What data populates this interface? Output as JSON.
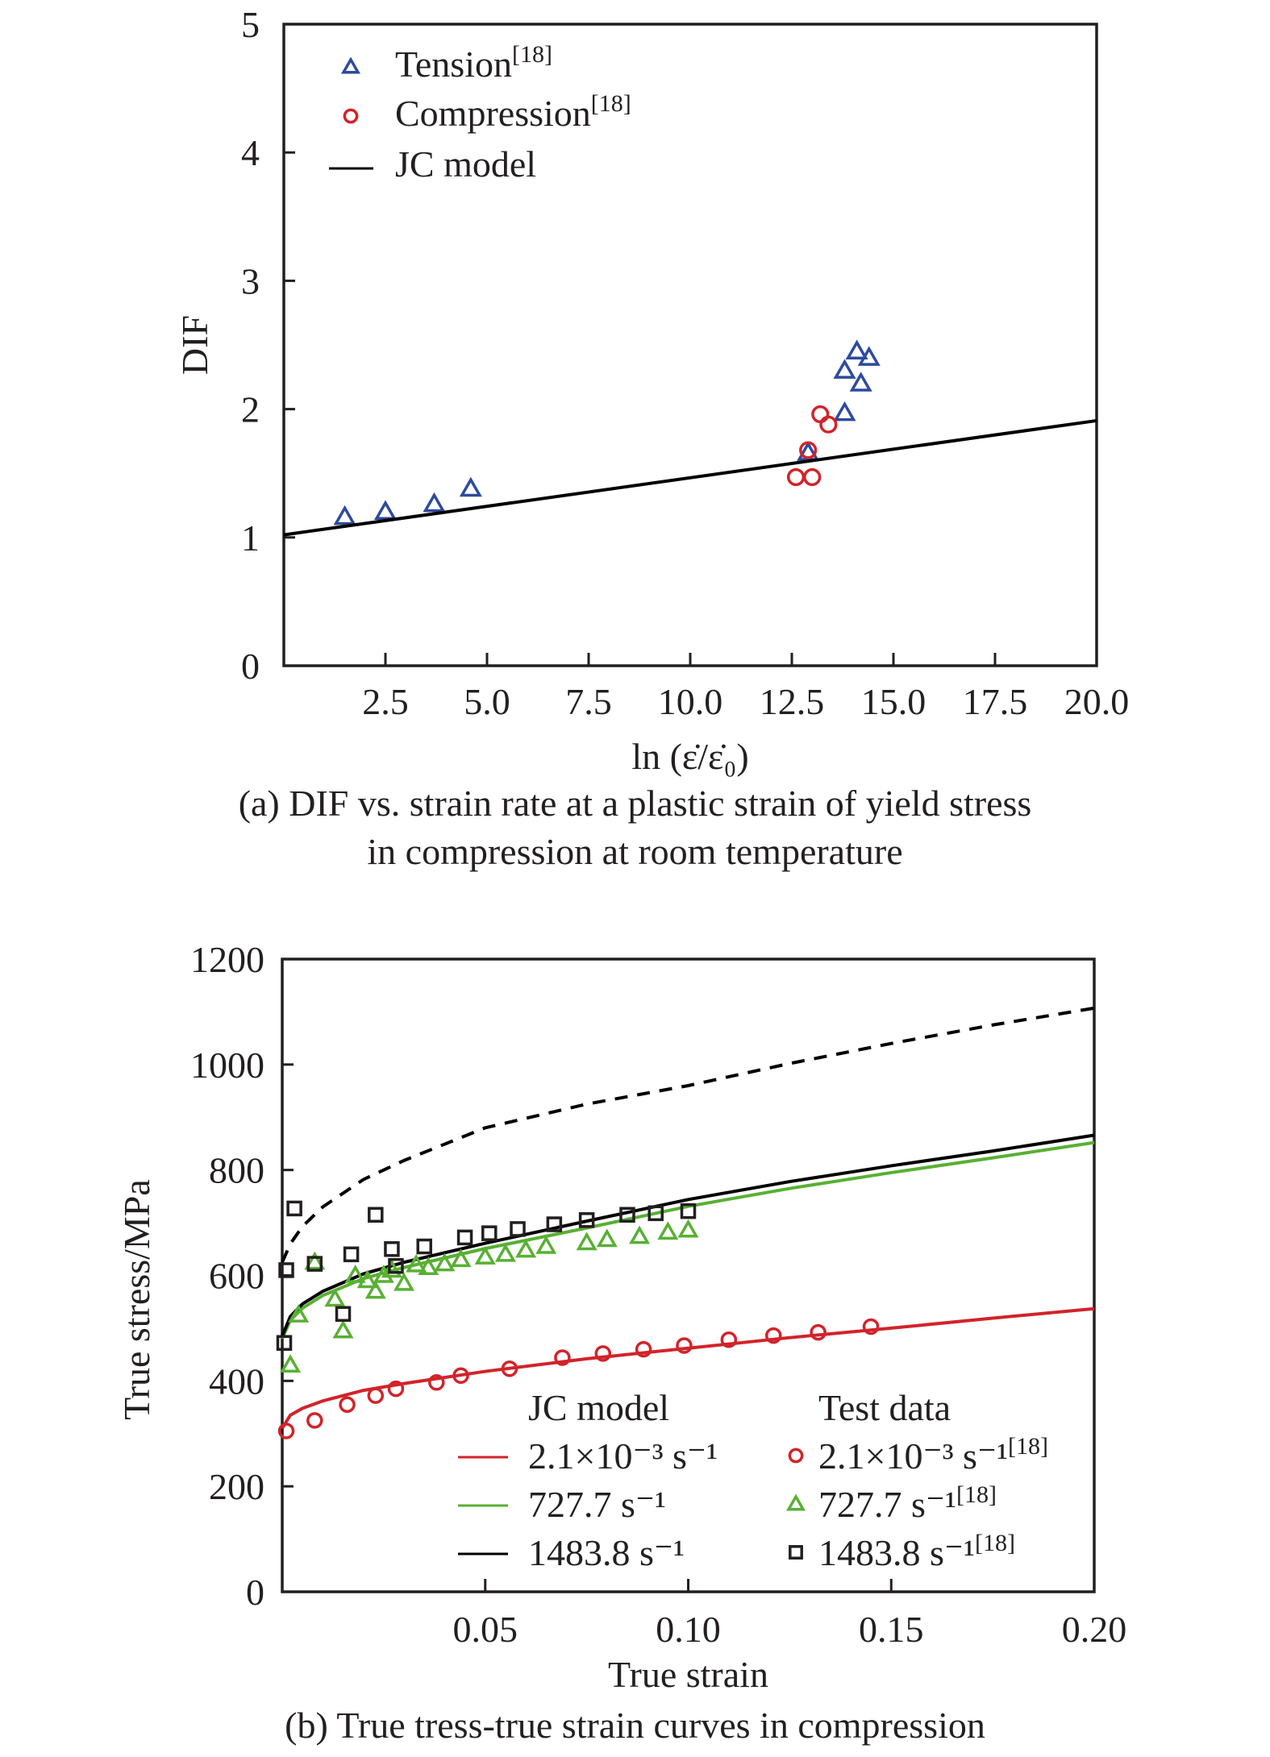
{
  "chart_data": [
    {
      "type": "scatter",
      "panel": "a",
      "caption_line1": "(a) DIF vs. strain rate at a plastic strain of yield stress",
      "caption_line2": "in compression at room temperature",
      "xlabel": "ln (ε̇/ε̇₀)",
      "ylabel": "DIF",
      "xlim": [
        0,
        20
      ],
      "ylim": [
        0,
        5
      ],
      "xticks": [
        2.5,
        5.0,
        7.5,
        10.0,
        12.5,
        15.0,
        17.5,
        20.0
      ],
      "xtick_labels": [
        "2.5",
        "5.0",
        "7.5",
        "10.0",
        "12.5",
        "15.0",
        "17.5",
        "20.0"
      ],
      "yticks": [
        0,
        1,
        2,
        3,
        4,
        5
      ],
      "ytick_labels": [
        "0",
        "1",
        "2",
        "3",
        "4",
        "5"
      ],
      "grid": false,
      "legend_position": "top-left",
      "series": [
        {
          "name": "Tension",
          "ref": "[18]",
          "marker": "triangle",
          "color": "#2e4a9e",
          "x": [
            1.5,
            2.5,
            3.7,
            4.6,
            12.9,
            13.8,
            13.8,
            14.1,
            14.2,
            14.4
          ],
          "y": [
            1.16,
            1.2,
            1.26,
            1.38,
            1.66,
            1.97,
            2.3,
            2.45,
            2.2,
            2.4
          ]
        },
        {
          "name": "Compression",
          "ref": "[18]",
          "marker": "circle",
          "color": "#d2232a",
          "x": [
            12.6,
            12.9,
            13.0,
            13.2,
            13.4
          ],
          "y": [
            1.47,
            1.68,
            1.47,
            1.96,
            1.88
          ]
        },
        {
          "name": "JC model",
          "ref": "",
          "marker": "line",
          "color": "#000000",
          "x": [
            0,
            20
          ],
          "y": [
            1.02,
            1.91
          ]
        }
      ]
    },
    {
      "type": "line",
      "panel": "b",
      "caption": "(b) True tress-true strain curves in compression",
      "xlabel": "True strain",
      "ylabel": "True stress/MPa",
      "xlim": [
        0,
        0.2
      ],
      "ylim": [
        0,
        1200
      ],
      "xticks": [
        0.05,
        0.1,
        0.15,
        0.2
      ],
      "xtick_labels": [
        "0.05",
        "0.10",
        "0.15",
        "0.20"
      ],
      "yticks": [
        0,
        200,
        400,
        600,
        800,
        1000,
        1200
      ],
      "ytick_labels": [
        "0",
        "200",
        "400",
        "600",
        "800",
        "1000",
        "1200"
      ],
      "grid": false,
      "legend_position": "bottom-right",
      "legend_headers": [
        "JC model",
        "Test data"
      ],
      "model_curves": [
        {
          "name": "2.1×10⁻³ s⁻¹",
          "color": "#d2232a",
          "style": "solid",
          "x": [
            0.0,
            0.002,
            0.005,
            0.01,
            0.02,
            0.03,
            0.05,
            0.075,
            0.1,
            0.125,
            0.15,
            0.175,
            0.2
          ],
          "y": [
            310,
            335,
            348,
            362,
            382,
            395,
            418,
            442,
            462,
            482,
            500,
            519,
            537
          ]
        },
        {
          "name": "727.7 s⁻¹",
          "color": "#58b033",
          "style": "solid",
          "x": [
            0.0,
            0.002,
            0.005,
            0.01,
            0.02,
            0.03,
            0.05,
            0.075,
            0.1,
            0.125,
            0.15,
            0.175,
            0.2
          ],
          "y": [
            480,
            515,
            538,
            562,
            594,
            615,
            651,
            690,
            731,
            765,
            795,
            823,
            852
          ]
        },
        {
          "name": "1483.8 s⁻¹",
          "color": "#000000",
          "style": "solid",
          "x": [
            0.0,
            0.002,
            0.005,
            0.01,
            0.02,
            0.03,
            0.05,
            0.075,
            0.1,
            0.125,
            0.15,
            0.175,
            0.2
          ],
          "y": [
            485,
            522,
            546,
            570,
            603,
            625,
            661,
            703,
            744,
            778,
            808,
            836,
            866
          ]
        },
        {
          "name": "dashed (unlabeled)",
          "color": "#000000",
          "style": "dashed",
          "x": [
            0.0,
            0.002,
            0.005,
            0.01,
            0.02,
            0.03,
            0.05,
            0.075,
            0.1,
            0.125,
            0.15,
            0.175,
            0.2
          ],
          "y": [
            625,
            660,
            693,
            730,
            782,
            818,
            880,
            925,
            960,
            1002,
            1040,
            1075,
            1107
          ]
        }
      ],
      "test_data": [
        {
          "name": "2.1×10⁻³ s⁻¹",
          "ref": "[18]",
          "marker": "circle",
          "color": "#d2232a",
          "x": [
            0.001,
            0.008,
            0.016,
            0.023,
            0.028,
            0.038,
            0.044,
            0.056,
            0.069,
            0.079,
            0.089,
            0.099,
            0.11,
            0.121,
            0.132,
            0.145
          ],
          "y": [
            305,
            325,
            355,
            372,
            385,
            397,
            410,
            423,
            444,
            452,
            460,
            467,
            478,
            486,
            492,
            503
          ]
        },
        {
          "name": "727.7 s⁻¹",
          "ref": "[18]",
          "marker": "triangle",
          "color": "#58b033",
          "x": [
            0.002,
            0.004,
            0.008,
            0.013,
            0.015,
            0.018,
            0.021,
            0.023,
            0.025,
            0.027,
            0.03,
            0.033,
            0.036,
            0.04,
            0.044,
            0.05,
            0.055,
            0.06,
            0.065,
            0.075,
            0.08,
            0.088,
            0.095,
            0.1
          ],
          "y": [
            430,
            525,
            625,
            555,
            495,
            600,
            590,
            570,
            600,
            610,
            585,
            620,
            615,
            622,
            630,
            635,
            640,
            648,
            655,
            662,
            668,
            674,
            682,
            686
          ]
        },
        {
          "name": "1483.8 s⁻¹",
          "ref": "[18]",
          "marker": "square",
          "color": "#231f20",
          "x": [
            0.0005,
            0.001,
            0.003,
            0.008,
            0.015,
            0.017,
            0.023,
            0.027,
            0.028,
            0.035,
            0.045,
            0.051,
            0.058,
            0.067,
            0.075,
            0.085,
            0.092,
            0.1
          ],
          "y": [
            472,
            610,
            727,
            622,
            527,
            640,
            715,
            650,
            618,
            655,
            672,
            680,
            688,
            697,
            705,
            715,
            718,
            722
          ]
        }
      ]
    }
  ]
}
